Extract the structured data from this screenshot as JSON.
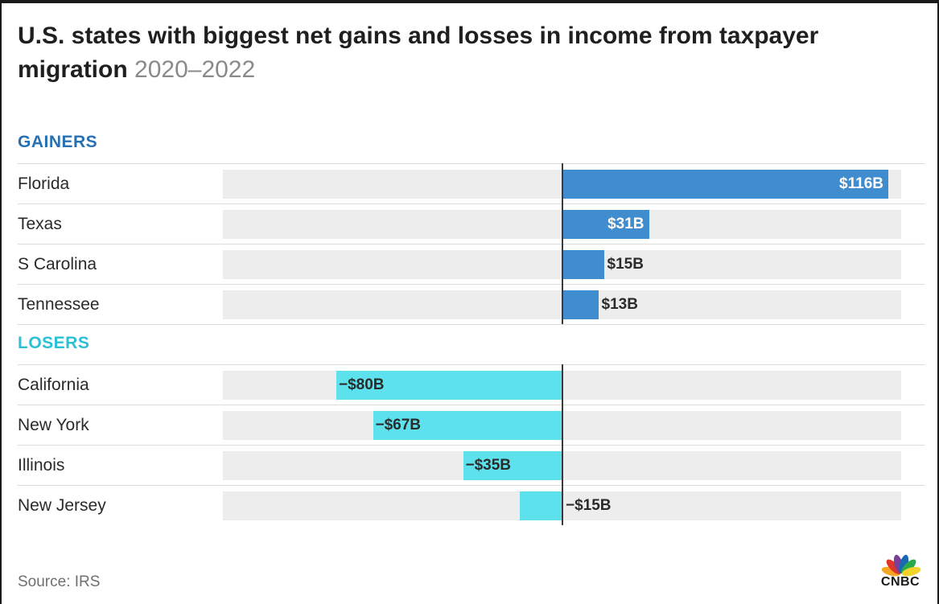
{
  "header": {
    "title": "U.S. states with biggest net gains and losses in income from taxpayer migration",
    "subtitle": "2020–2022"
  },
  "colors": {
    "gainers": "#3f8ccf",
    "gainers_label": "#2770b2",
    "losers": "#5de1ec",
    "losers_label": "#2cc0d6",
    "track": "#ededed"
  },
  "chart_data": {
    "type": "bar",
    "orientation": "horizontal",
    "unit": "$B",
    "xlim": [
      -100,
      120
    ],
    "grid": false,
    "groups": [
      {
        "name": "GAINERS",
        "categories": [
          "Florida",
          "Texas",
          "S Carolina",
          "Tennessee"
        ],
        "values": [
          116,
          31,
          15,
          13
        ],
        "labels": [
          "$116B",
          "$31B",
          "$15B",
          "$13B"
        ]
      },
      {
        "name": "LOSERS",
        "categories": [
          "California",
          "New York",
          "Illinois",
          "New Jersey"
        ],
        "values": [
          -80,
          -67,
          -35,
          -15
        ],
        "labels": [
          "−$80B",
          "−$67B",
          "−$35B",
          "−$15B"
        ]
      }
    ]
  },
  "footer": {
    "source": "Source: IRS",
    "logo_text": "CNBC"
  }
}
